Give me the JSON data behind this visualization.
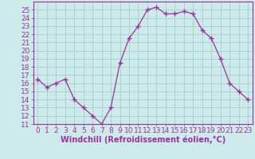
{
  "x": [
    0,
    1,
    2,
    3,
    4,
    5,
    6,
    7,
    8,
    9,
    10,
    11,
    12,
    13,
    14,
    15,
    16,
    17,
    18,
    19,
    20,
    21,
    22,
    23
  ],
  "y": [
    16.5,
    15.5,
    16.0,
    16.5,
    14.0,
    13.0,
    12.0,
    11.0,
    13.0,
    18.5,
    21.5,
    23.0,
    25.0,
    25.3,
    24.5,
    24.5,
    24.8,
    24.5,
    22.5,
    21.5,
    19.0,
    16.0,
    15.0,
    14.0
  ],
  "line_color": "#993399",
  "marker": "+",
  "marker_size": 4,
  "bg_color": "#cceaea",
  "grid_color": "#aacccc",
  "xlabel": "Windchill (Refroidissement éolien,°C)",
  "xlabel_color": "#993399",
  "tick_color": "#993399",
  "ylim": [
    11,
    26
  ],
  "xlim": [
    -0.5,
    23.5
  ],
  "yticks": [
    11,
    12,
    13,
    14,
    15,
    16,
    17,
    18,
    19,
    20,
    21,
    22,
    23,
    24,
    25
  ],
  "xticks": [
    0,
    1,
    2,
    3,
    4,
    5,
    6,
    7,
    8,
    9,
    10,
    11,
    12,
    13,
    14,
    15,
    16,
    17,
    18,
    19,
    20,
    21,
    22,
    23
  ],
  "spine_color": "#993399",
  "font_size": 6.5,
  "xlabel_fontsize": 7
}
